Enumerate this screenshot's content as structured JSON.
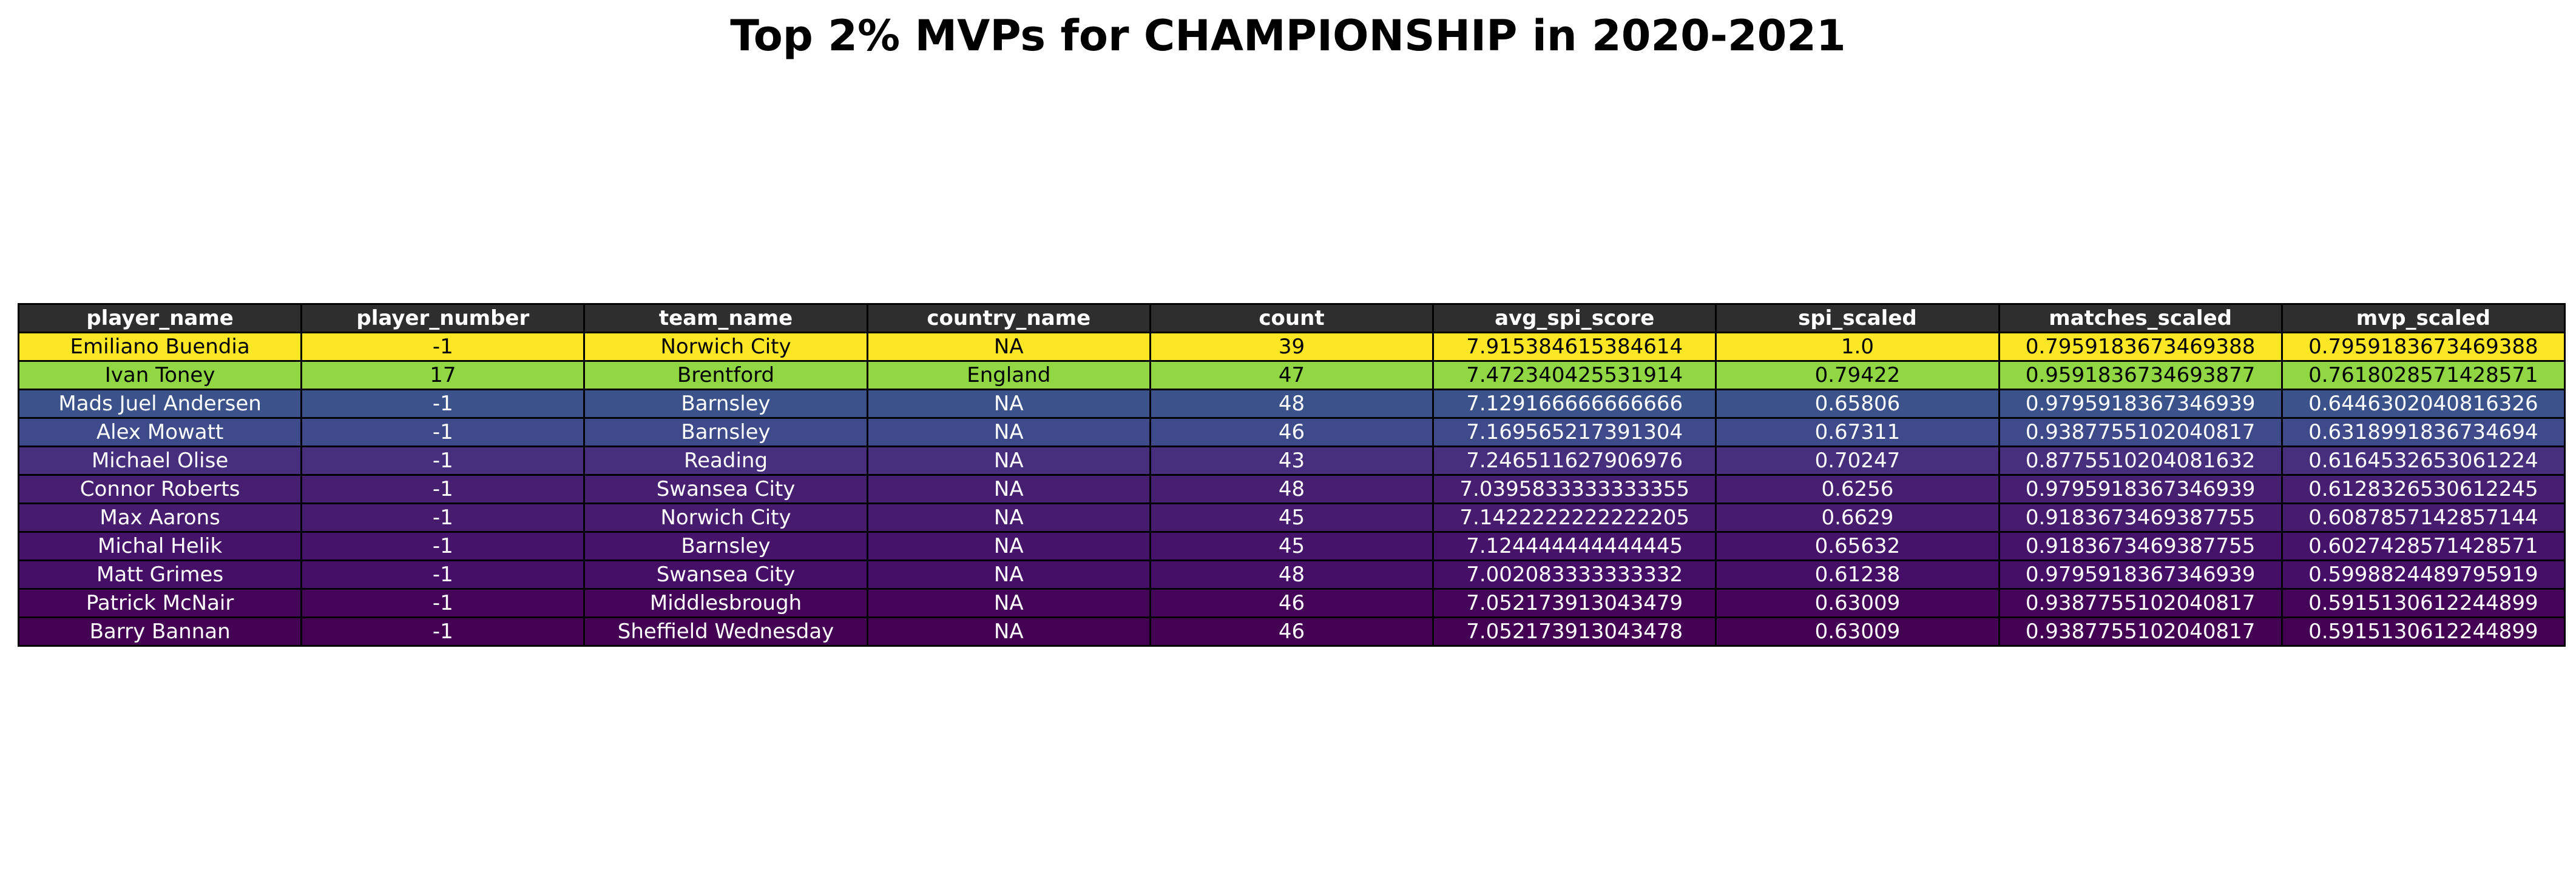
{
  "chart_data": {
    "type": "table",
    "title": "Top 2% MVPs for CHAMPIONSHIP in 2020-2021",
    "columns": [
      "player_name",
      "player_number",
      "team_name",
      "country_name",
      "count",
      "avg_spi_score",
      "spi_scaled",
      "matches_scaled",
      "mvp_scaled"
    ],
    "rows": [
      [
        "Emiliano Buendia",
        "-1",
        "Norwich City",
        "NA",
        "39",
        "7.915384615384614",
        "1.0",
        "0.7959183673469388",
        "0.7959183673469388"
      ],
      [
        "Ivan Toney",
        "17",
        "Brentford",
        "England",
        "47",
        "7.472340425531914",
        "0.79422",
        "0.9591836734693877",
        "0.7618028571428571"
      ],
      [
        "Mads Juel Andersen",
        "-1",
        "Barnsley",
        "NA",
        "48",
        "7.129166666666666",
        "0.65806",
        "0.9795918367346939",
        "0.6446302040816326"
      ],
      [
        "Alex Mowatt",
        "-1",
        "Barnsley",
        "NA",
        "46",
        "7.169565217391304",
        "0.67311",
        "0.9387755102040817",
        "0.6318991836734694"
      ],
      [
        "Michael Olise",
        "-1",
        "Reading",
        "NA",
        "43",
        "7.246511627906976",
        "0.70247",
        "0.8775510204081632",
        "0.6164532653061224"
      ],
      [
        "Connor Roberts",
        "-1",
        "Swansea City",
        "NA",
        "48",
        "7.0395833333333355",
        "0.6256",
        "0.9795918367346939",
        "0.6128326530612245"
      ],
      [
        "Max Aarons",
        "-1",
        "Norwich City",
        "NA",
        "45",
        "7.1422222222222205",
        "0.6629",
        "0.9183673469387755",
        "0.6087857142857144"
      ],
      [
        "Michal Helik",
        "-1",
        "Barnsley",
        "NA",
        "45",
        "7.124444444444445",
        "0.65632",
        "0.9183673469387755",
        "0.6027428571428571"
      ],
      [
        "Matt Grimes",
        "-1",
        "Swansea City",
        "NA",
        "48",
        "7.002083333333332",
        "0.61238",
        "0.9795918367346939",
        "0.5998824489795919"
      ],
      [
        "Patrick McNair",
        "-1",
        "Middlesbrough",
        "NA",
        "46",
        "7.052173913043479",
        "0.63009",
        "0.9387755102040817",
        "0.5915130612244899"
      ],
      [
        "Barry Bannan",
        "-1",
        "Sheffield Wednesday",
        "NA",
        "46",
        "7.052173913043478",
        "0.63009",
        "0.9387755102040817",
        "0.5915130612244899"
      ]
    ],
    "row_colors": [
      "#fde725",
      "#90d743",
      "#3b528b",
      "#3e4a89",
      "#472f7d",
      "#471f71",
      "#471b6e",
      "#46136a",
      "#450f67",
      "#440559",
      "#440154"
    ],
    "row_text_colors": [
      "#000000",
      "#000000",
      "#ffffff",
      "#ffffff",
      "#ffffff",
      "#ffffff",
      "#ffffff",
      "#ffffff",
      "#ffffff",
      "#ffffff",
      "#ffffff"
    ],
    "header_color": "#2e2e2e",
    "header_text_color": "#ffffff",
    "colormap": "viridis"
  }
}
